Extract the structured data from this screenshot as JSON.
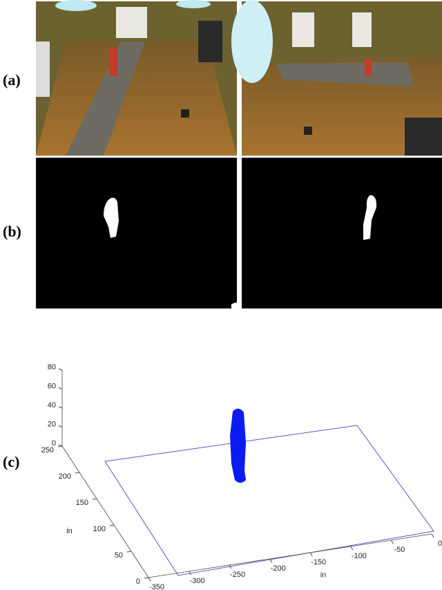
{
  "panel_labels": [
    "(a)",
    "(b)",
    "(c)"
  ],
  "chart_data": {
    "type": "scatter3d",
    "xlabel": "in",
    "ylabel": "in",
    "xlim": [
      -350,
      0
    ],
    "xticks": [
      -350,
      -300,
      -250,
      -200,
      -150,
      -100,
      -50,
      0
    ],
    "ylim": [
      0,
      250
    ],
    "yticks": [
      0,
      50,
      100,
      150,
      200,
      250
    ],
    "zlim": [
      0,
      80
    ],
    "zticks": [
      0,
      20,
      40,
      60,
      80
    ]
  }
}
